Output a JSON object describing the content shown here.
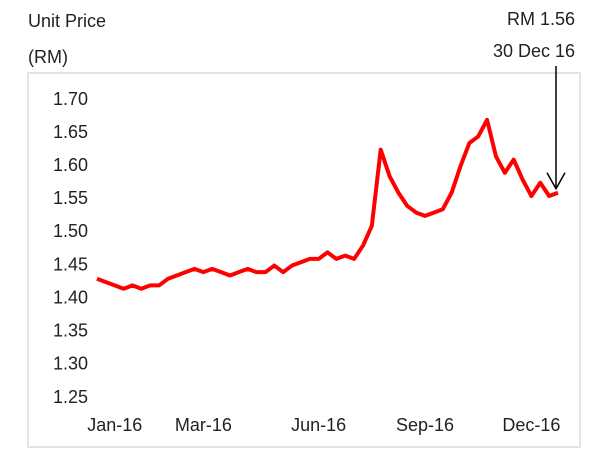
{
  "chart_data": {
    "type": "line",
    "ylabel": [
      "Unit Price",
      "(RM)"
    ],
    "annotation": [
      "RM 1.56",
      "30 Dec 16"
    ],
    "categories": [
      null,
      null,
      "Jan-16",
      null,
      null,
      null,
      null,
      null,
      null,
      null,
      null,
      null,
      "Mar-16",
      null,
      null,
      null,
      null,
      null,
      null,
      null,
      null,
      null,
      null,
      null,
      null,
      "Jun-16",
      null,
      null,
      null,
      null,
      null,
      null,
      null,
      null,
      null,
      null,
      null,
      "Sep-16",
      null,
      null,
      null,
      null,
      null,
      null,
      null,
      null,
      null,
      null,
      null,
      "Dec-16",
      null,
      null,
      null
    ],
    "series": [
      {
        "color": "#ff0000",
        "values": [
          1.43,
          1.425,
          1.42,
          1.415,
          1.42,
          1.415,
          1.42,
          1.42,
          1.43,
          1.435,
          1.44,
          1.445,
          1.44,
          1.445,
          1.44,
          1.435,
          1.44,
          1.445,
          1.44,
          1.44,
          1.45,
          1.44,
          1.45,
          1.455,
          1.46,
          1.46,
          1.47,
          1.46,
          1.465,
          1.46,
          1.48,
          1.51,
          1.625,
          1.585,
          1.56,
          1.54,
          1.53,
          1.525,
          1.53,
          1.535,
          1.56,
          1.6,
          1.635,
          1.645,
          1.67,
          1.615,
          1.59,
          1.61,
          1.58,
          1.555,
          1.575,
          1.555,
          1.56
        ]
      }
    ],
    "ylim": [
      1.25,
      1.7
    ],
    "yticks": [
      1.25,
      {
        "value": 1.3,
        "label": "1.30"
      },
      1.35,
      {
        "value": 1.4,
        "label": "1.40"
      },
      1.45,
      {
        "value": 1.5,
        "label": "1.50"
      },
      1.55,
      {
        "value": 1.6,
        "label": "1.60"
      },
      1.65,
      {
        "value": 1.7,
        "label": "1.70"
      }
    ],
    "grid": false
  }
}
